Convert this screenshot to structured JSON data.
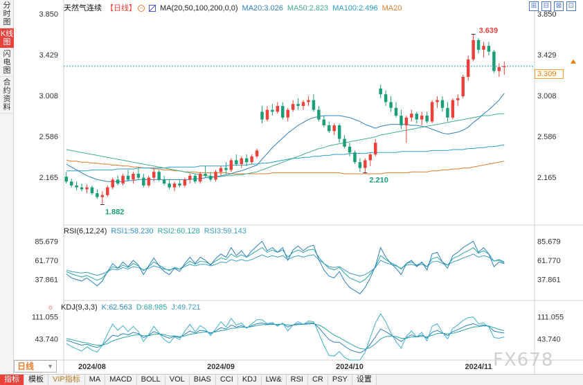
{
  "left_tabs": [
    "分时图",
    "K线图",
    "闪电图",
    "合约资料"
  ],
  "left_tabs_active": 1,
  "main": {
    "stock_name": "天然气连续",
    "period_label": "【日线】",
    "circle_icon_text": "⊖",
    "ma_params": "MA(20,50,100,200,0,0)",
    "ma20": "MA20:3.026",
    "ma50": "MA50:2.823",
    "ma100": "MA100:2.496",
    "ma20b": "MA20",
    "y_ticks": [
      "3.850",
      "3.429",
      "3.008",
      "2.586",
      "2.165"
    ],
    "y_ticks_right": [
      "3.850",
      "3.429",
      "3.008",
      "2.586",
      "2.165"
    ],
    "last_price": "3.309",
    "high_label": "3.639",
    "low_label_1": "1.882",
    "low_label_2": "2.210"
  },
  "rsi": {
    "title": "RSI(6,12,24)",
    "rsi1": "RSI1:58.230",
    "rsi2": "RSI2:60.128",
    "rsi3": "RSI3:59.143",
    "y_ticks": [
      "85.679",
      "61.770",
      "37.861"
    ]
  },
  "kdj": {
    "title": "KDJ(9,3,3)",
    "k": "K:62.563",
    "d": "D:68.985",
    "j": "J:49.721",
    "y_ticks": [
      "111.055",
      "43.740"
    ]
  },
  "dates": [
    "2024/08",
    "2024/09",
    "2024/10",
    "2024/11"
  ],
  "period_box": "日线",
  "window_buttons": [
    "⊞",
    "⊟",
    "⊠",
    "⊡"
  ],
  "bottom_tabs": [
    "指标",
    "模板",
    "VIP指标",
    "MA",
    "MACD",
    "BOLL",
    "VOL",
    "BIAS",
    "CCI",
    "KDJ",
    "LW&",
    "RSI",
    "CR",
    "PSY",
    "设置"
  ],
  "watermark": "FX678",
  "colors": {
    "up": "#e8423b",
    "down": "#1a9e77",
    "ma20": "#2f7fbf",
    "ma50": "#3fb08a",
    "ma100": "#2aa0c8",
    "ma200": "#e07b2a"
  },
  "chart_data": {
    "type": "candlestick",
    "title": "天然气连续",
    "ylim": [
      1.85,
      3.85
    ],
    "x_labels": [
      "2024/08",
      "2024/09",
      "2024/10",
      "2024/11"
    ],
    "ohlc": [
      [
        2.17,
        2.22,
        2.1,
        2.12
      ],
      [
        2.12,
        2.15,
        2.06,
        2.08
      ],
      [
        2.08,
        2.12,
        2.03,
        2.06
      ],
      [
        2.06,
        2.1,
        2.02,
        2.04
      ],
      [
        2.04,
        2.09,
        2.0,
        2.06
      ],
      [
        2.06,
        2.08,
        1.98,
        2.0
      ],
      [
        2.0,
        2.04,
        1.94,
        1.96
      ],
      [
        1.96,
        2.02,
        1.88,
        1.98
      ],
      [
        1.98,
        2.08,
        1.96,
        2.06
      ],
      [
        2.06,
        2.16,
        2.04,
        2.14
      ],
      [
        2.14,
        2.18,
        2.08,
        2.1
      ],
      [
        2.1,
        2.2,
        2.08,
        2.18
      ],
      [
        2.18,
        2.24,
        2.12,
        2.14
      ],
      [
        2.14,
        2.22,
        2.1,
        2.2
      ],
      [
        2.2,
        2.26,
        2.14,
        2.16
      ],
      [
        2.16,
        2.2,
        2.06,
        2.08
      ],
      [
        2.08,
        2.18,
        2.06,
        2.16
      ],
      [
        2.16,
        2.26,
        2.12,
        2.22
      ],
      [
        2.22,
        2.24,
        2.12,
        2.14
      ],
      [
        2.14,
        2.18,
        2.08,
        2.1
      ],
      [
        2.1,
        2.14,
        2.04,
        2.06
      ],
      [
        2.06,
        2.12,
        2.02,
        2.1
      ],
      [
        2.1,
        2.14,
        2.06,
        2.08
      ],
      [
        2.08,
        2.16,
        2.06,
        2.14
      ],
      [
        2.14,
        2.2,
        2.1,
        2.18
      ],
      [
        2.18,
        2.2,
        2.1,
        2.12
      ],
      [
        2.12,
        2.22,
        2.1,
        2.2
      ],
      [
        2.2,
        2.28,
        2.16,
        2.18
      ],
      [
        2.18,
        2.22,
        2.12,
        2.14
      ],
      [
        2.14,
        2.24,
        2.12,
        2.22
      ],
      [
        2.22,
        2.28,
        2.18,
        2.26
      ],
      [
        2.26,
        2.32,
        2.2,
        2.24
      ],
      [
        2.24,
        2.36,
        2.22,
        2.34
      ],
      [
        2.34,
        2.4,
        2.28,
        2.3
      ],
      [
        2.3,
        2.38,
        2.26,
        2.36
      ],
      [
        2.36,
        2.4,
        2.28,
        2.32
      ],
      [
        2.32,
        2.4,
        2.3,
        2.38
      ],
      [
        2.38,
        2.46,
        2.36,
        2.44
      ],
      [
        2.84,
        2.9,
        2.72,
        2.76
      ],
      [
        2.76,
        2.9,
        2.74,
        2.86
      ],
      [
        2.86,
        2.92,
        2.8,
        2.84
      ],
      [
        2.84,
        2.94,
        2.82,
        2.9
      ],
      [
        2.9,
        2.94,
        2.76,
        2.78
      ],
      [
        2.78,
        2.88,
        2.74,
        2.86
      ],
      [
        2.86,
        2.96,
        2.84,
        2.92
      ],
      [
        2.92,
        2.98,
        2.86,
        2.9
      ],
      [
        2.9,
        2.96,
        2.86,
        2.94
      ],
      [
        2.94,
        3.0,
        2.9,
        2.96
      ],
      [
        2.96,
        3.02,
        2.84,
        2.86
      ],
      [
        2.86,
        2.9,
        2.74,
        2.76
      ],
      [
        2.76,
        2.8,
        2.68,
        2.7
      ],
      [
        2.7,
        2.74,
        2.62,
        2.64
      ],
      [
        2.64,
        2.72,
        2.6,
        2.7
      ],
      [
        2.7,
        2.72,
        2.52,
        2.56
      ],
      [
        2.56,
        2.6,
        2.46,
        2.48
      ],
      [
        2.48,
        2.52,
        2.38,
        2.42
      ],
      [
        2.42,
        2.44,
        2.3,
        2.32
      ],
      [
        2.32,
        2.36,
        2.22,
        2.26
      ],
      [
        2.26,
        2.36,
        2.21,
        2.34
      ],
      [
        2.34,
        2.42,
        2.28,
        2.4
      ],
      [
        2.4,
        2.56,
        2.38,
        2.52
      ],
      [
        3.08,
        3.12,
        2.98,
        3.02
      ],
      [
        3.02,
        3.06,
        2.9,
        2.94
      ],
      [
        2.94,
        3.0,
        2.84,
        2.88
      ],
      [
        2.88,
        2.94,
        2.78,
        2.8
      ],
      [
        2.8,
        2.86,
        2.66,
        2.7
      ],
      [
        2.7,
        2.8,
        2.52,
        2.78
      ],
      [
        2.78,
        2.86,
        2.74,
        2.82
      ],
      [
        2.82,
        2.84,
        2.72,
        2.76
      ],
      [
        2.76,
        2.84,
        2.7,
        2.8
      ],
      [
        2.8,
        2.84,
        2.72,
        2.74
      ],
      [
        2.74,
        2.96,
        2.72,
        2.94
      ],
      [
        2.94,
        3.0,
        2.88,
        2.96
      ],
      [
        2.96,
        3.0,
        2.84,
        2.88
      ],
      [
        2.88,
        2.94,
        2.74,
        2.78
      ],
      [
        2.78,
        2.98,
        2.76,
        2.96
      ],
      [
        2.96,
        3.02,
        2.9,
        2.98
      ],
      [
        3.0,
        3.22,
        2.98,
        3.2
      ],
      [
        3.2,
        3.42,
        3.16,
        3.38
      ],
      [
        3.38,
        3.64,
        3.36,
        3.58
      ],
      [
        3.58,
        3.6,
        3.44,
        3.48
      ],
      [
        3.48,
        3.56,
        3.4,
        3.52
      ],
      [
        3.52,
        3.56,
        3.42,
        3.46
      ],
      [
        3.46,
        3.48,
        3.24,
        3.26
      ],
      [
        3.26,
        3.34,
        3.2,
        3.3
      ],
      [
        3.3,
        3.36,
        3.22,
        3.31
      ]
    ],
    "ma20": [
      2.3,
      2.27,
      2.24,
      2.21,
      2.18,
      2.16,
      2.14,
      2.13,
      2.12,
      2.12,
      2.12,
      2.12,
      2.13,
      2.13,
      2.14,
      2.14,
      2.14,
      2.14,
      2.14,
      2.14,
      2.14,
      2.14,
      2.14,
      2.14,
      2.14,
      2.15,
      2.15,
      2.16,
      2.16,
      2.17,
      2.18,
      2.19,
      2.2,
      2.22,
      2.23,
      2.25,
      2.27,
      2.29,
      2.35,
      2.41,
      2.47,
      2.52,
      2.57,
      2.62,
      2.66,
      2.7,
      2.73,
      2.76,
      2.78,
      2.79,
      2.8,
      2.8,
      2.8,
      2.8,
      2.79,
      2.78,
      2.76,
      2.74,
      2.71,
      2.69,
      2.67,
      2.69,
      2.7,
      2.71,
      2.71,
      2.71,
      2.71,
      2.7,
      2.7,
      2.69,
      2.68,
      2.66,
      2.64,
      2.62,
      2.61,
      2.62,
      2.63,
      2.65,
      2.68,
      2.73,
      2.77,
      2.82,
      2.86,
      2.91,
      2.96,
      3.03
    ],
    "ma50": [
      2.45,
      2.44,
      2.43,
      2.42,
      2.41,
      2.4,
      2.39,
      2.38,
      2.37,
      2.36,
      2.35,
      2.34,
      2.33,
      2.32,
      2.31,
      2.3,
      2.29,
      2.28,
      2.27,
      2.26,
      2.25,
      2.24,
      2.23,
      2.22,
      2.21,
      2.2,
      2.19,
      2.18,
      2.17,
      2.17,
      2.17,
      2.18,
      2.18,
      2.19,
      2.19,
      2.2,
      2.21,
      2.22,
      2.24,
      2.26,
      2.28,
      2.3,
      2.32,
      2.34,
      2.36,
      2.38,
      2.4,
      2.42,
      2.44,
      2.46,
      2.47,
      2.49,
      2.5,
      2.51,
      2.52,
      2.53,
      2.54,
      2.55,
      2.56,
      2.57,
      2.58,
      2.6,
      2.61,
      2.62,
      2.63,
      2.64,
      2.65,
      2.66,
      2.67,
      2.68,
      2.69,
      2.7,
      2.71,
      2.72,
      2.73,
      2.74,
      2.75,
      2.76,
      2.77,
      2.78,
      2.79,
      2.8,
      2.8,
      2.81,
      2.82,
      2.82
    ],
    "ma100": [
      2.23,
      2.23,
      2.23,
      2.23,
      2.23,
      2.24,
      2.24,
      2.24,
      2.24,
      2.24,
      2.25,
      2.25,
      2.25,
      2.25,
      2.26,
      2.26,
      2.26,
      2.26,
      2.26,
      2.26,
      2.27,
      2.27,
      2.27,
      2.27,
      2.27,
      2.27,
      2.28,
      2.28,
      2.28,
      2.28,
      2.28,
      2.28,
      2.29,
      2.29,
      2.29,
      2.29,
      2.3,
      2.3,
      2.31,
      2.31,
      2.32,
      2.33,
      2.34,
      2.35,
      2.36,
      2.36,
      2.37,
      2.37,
      2.38,
      2.38,
      2.39,
      2.39,
      2.4,
      2.4,
      2.4,
      2.41,
      2.41,
      2.41,
      2.41,
      2.42,
      2.42,
      2.42,
      2.42,
      2.42,
      2.42,
      2.43,
      2.43,
      2.43,
      2.43,
      2.43,
      2.43,
      2.44,
      2.44,
      2.44,
      2.44,
      2.45,
      2.45,
      2.45,
      2.46,
      2.46,
      2.47,
      2.47,
      2.48,
      2.48,
      2.49,
      2.5
    ],
    "ma200": [
      2.34,
      2.33,
      2.33,
      2.32,
      2.32,
      2.31,
      2.31,
      2.3,
      2.3,
      2.29,
      2.29,
      2.28,
      2.28,
      2.27,
      2.27,
      2.26,
      2.26,
      2.25,
      2.25,
      2.24,
      2.24,
      2.23,
      2.23,
      2.22,
      2.22,
      2.22,
      2.21,
      2.21,
      2.21,
      2.21,
      2.21,
      2.21,
      2.2,
      2.2,
      2.2,
      2.2,
      2.2,
      2.2,
      2.2,
      2.2,
      2.21,
      2.21,
      2.21,
      2.21,
      2.21,
      2.21,
      2.21,
      2.21,
      2.21,
      2.21,
      2.21,
      2.21,
      2.21,
      2.21,
      2.2,
      2.2,
      2.2,
      2.2,
      2.2,
      2.2,
      2.2,
      2.2,
      2.21,
      2.21,
      2.21,
      2.21,
      2.21,
      2.22,
      2.22,
      2.22,
      2.22,
      2.23,
      2.23,
      2.24,
      2.24,
      2.25,
      2.25,
      2.26,
      2.26,
      2.27,
      2.28,
      2.29,
      2.3,
      2.31,
      2.32,
      2.33
    ],
    "rsi_ylim": [
      15,
      95
    ],
    "rsi1": [
      45,
      40,
      38,
      36,
      40,
      35,
      30,
      36,
      48,
      58,
      52,
      60,
      54,
      62,
      56,
      44,
      55,
      65,
      55,
      48,
      44,
      52,
      48,
      58,
      66,
      58,
      66,
      62,
      56,
      64,
      70,
      66,
      78,
      68,
      74,
      66,
      74,
      80,
      86,
      74,
      78,
      72,
      78,
      62,
      75,
      80,
      74,
      79,
      81,
      63,
      50,
      42,
      40,
      48,
      36,
      28,
      24,
      20,
      28,
      40,
      55,
      78,
      66,
      58,
      52,
      44,
      58,
      62,
      54,
      60,
      50,
      70,
      72,
      60,
      52,
      68,
      72,
      78,
      82,
      86,
      72,
      78,
      70,
      54,
      60,
      58
    ],
    "rsi2": [
      48,
      45,
      43,
      41,
      43,
      40,
      37,
      40,
      47,
      54,
      52,
      56,
      53,
      58,
      55,
      49,
      54,
      60,
      56,
      52,
      49,
      53,
      51,
      56,
      61,
      57,
      61,
      60,
      57,
      61,
      65,
      63,
      70,
      66,
      69,
      66,
      70,
      74,
      78,
      72,
      75,
      72,
      75,
      66,
      72,
      75,
      72,
      75,
      76,
      66,
      58,
      52,
      50,
      53,
      46,
      40,
      37,
      34,
      38,
      45,
      54,
      68,
      63,
      59,
      56,
      51,
      58,
      60,
      56,
      59,
      54,
      64,
      66,
      60,
      56,
      64,
      67,
      71,
      74,
      78,
      71,
      74,
      70,
      61,
      63,
      60
    ],
    "rsi3": [
      50,
      48,
      47,
      46,
      47,
      45,
      43,
      45,
      48,
      51,
      50,
      53,
      51,
      54,
      53,
      50,
      52,
      55,
      53,
      51,
      50,
      52,
      51,
      54,
      57,
      55,
      57,
      57,
      55,
      57,
      60,
      59,
      63,
      61,
      63,
      61,
      63,
      66,
      69,
      66,
      68,
      66,
      68,
      63,
      66,
      68,
      66,
      68,
      69,
      63,
      58,
      54,
      53,
      54,
      50,
      46,
      44,
      42,
      44,
      48,
      53,
      62,
      59,
      57,
      55,
      52,
      56,
      57,
      55,
      57,
      54,
      60,
      61,
      58,
      56,
      60,
      62,
      65,
      67,
      70,
      66,
      68,
      66,
      61,
      62,
      59
    ],
    "kdj_ylim": [
      -20,
      135
    ],
    "k": [
      40,
      35,
      30,
      25,
      28,
      22,
      18,
      25,
      40,
      55,
      52,
      60,
      56,
      64,
      60,
      48,
      55,
      66,
      60,
      52,
      46,
      52,
      48,
      58,
      68,
      62,
      70,
      68,
      60,
      68,
      78,
      74,
      86,
      80,
      84,
      78,
      84,
      90,
      92,
      88,
      90,
      86,
      90,
      80,
      86,
      90,
      88,
      92,
      92,
      78,
      60,
      42,
      34,
      34,
      22,
      12,
      6,
      2,
      10,
      28,
      50,
      74,
      66,
      56,
      46,
      36,
      48,
      56,
      50,
      56,
      46,
      64,
      70,
      62,
      54,
      66,
      72,
      80,
      86,
      90,
      84,
      86,
      82,
      68,
      64,
      62
    ],
    "d": [
      45,
      42,
      38,
      34,
      32,
      28,
      25,
      25,
      30,
      38,
      43,
      48,
      51,
      55,
      57,
      54,
      54,
      58,
      59,
      57,
      53,
      53,
      51,
      53,
      58,
      60,
      63,
      65,
      63,
      65,
      69,
      71,
      76,
      77,
      80,
      79,
      81,
      84,
      87,
      87,
      88,
      88,
      89,
      86,
      86,
      87,
      88,
      89,
      90,
      86,
      78,
      66,
      55,
      48,
      39,
      30,
      22,
      15,
      13,
      18,
      29,
      44,
      51,
      53,
      51,
      46,
      46,
      50,
      50,
      52,
      50,
      55,
      60,
      61,
      59,
      61,
      65,
      70,
      75,
      80,
      81,
      83,
      83,
      78,
      73,
      69
    ],
    "j": [
      30,
      21,
      14,
      7,
      20,
      10,
      4,
      25,
      60,
      89,
      70,
      84,
      66,
      82,
      66,
      36,
      57,
      82,
      62,
      42,
      32,
      50,
      42,
      68,
      88,
      66,
      84,
      74,
      54,
      74,
      96,
      80,
      106,
      86,
      92,
      76,
      90,
      102,
      102,
      90,
      94,
      82,
      92,
      68,
      86,
      96,
      88,
      98,
      96,
      62,
      24,
      -6,
      -8,
      6,
      -12,
      -20,
      -20,
      -20,
      4,
      48,
      92,
      120,
      96,
      62,
      36,
      16,
      52,
      68,
      50,
      64,
      38,
      82,
      90,
      64,
      44,
      76,
      86,
      100,
      108,
      110,
      90,
      92,
      80,
      48,
      46,
      50
    ]
  }
}
